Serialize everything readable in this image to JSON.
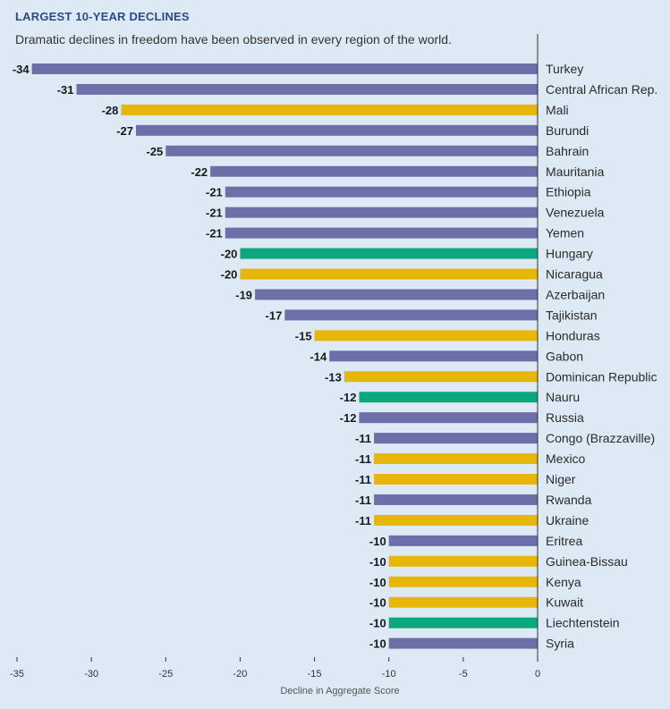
{
  "header": {
    "title": "LARGEST 10-YEAR DECLINES",
    "subtitle": "Dramatic declines in freedom have been observed in every region of the world."
  },
  "colors": {
    "background": "#dde9f5",
    "purple": "#6d70a8",
    "yellow": "#e7b60b",
    "green": "#0ca77e",
    "axis": "#333333"
  },
  "chart_data": {
    "type": "bar",
    "orientation": "horizontal",
    "title": "LARGEST 10-YEAR DECLINES",
    "subtitle": "Dramatic declines in freedom have been observed in every region of the world.",
    "xlabel": "Decline in Aggregate Score",
    "xlim": [
      -35,
      0
    ],
    "xticks": [
      -35,
      -30,
      -25,
      -20,
      -15,
      -10,
      -5,
      0
    ],
    "grid": false,
    "categories": [
      "Turkey",
      "Central African Rep.",
      "Mali",
      "Burundi",
      "Bahrain",
      "Mauritania",
      "Ethiopia",
      "Venezuela",
      "Yemen",
      "Hungary",
      "Nicaragua",
      "Azerbaijan",
      "Tajikistan",
      "Honduras",
      "Gabon",
      "Dominican Republic",
      "Nauru",
      "Russia",
      "Congo (Brazzaville)",
      "Mexico",
      "Niger",
      "Rwanda",
      "Ukraine",
      "Eritrea",
      "Guinea-Bissau",
      "Kenya",
      "Kuwait",
      "Liechtenstein",
      "Syria"
    ],
    "values": [
      -34,
      -31,
      -28,
      -27,
      -25,
      -22,
      -21,
      -21,
      -21,
      -20,
      -20,
      -19,
      -17,
      -15,
      -14,
      -13,
      -12,
      -12,
      -11,
      -11,
      -11,
      -11,
      -11,
      -10,
      -10,
      -10,
      -10,
      -10,
      -10
    ],
    "value_labels": [
      "-34",
      "-31",
      "-28",
      "-27",
      "-25",
      "-22",
      "-21",
      "-21",
      "-21",
      "-20",
      "-20",
      "-19",
      "-17",
      "-15",
      "-14",
      "-13",
      "-12",
      "-12",
      "-11",
      "-11",
      "-11",
      "-11",
      "-11",
      "-10",
      "-10",
      "-10",
      "-10",
      "-10",
      "-10"
    ],
    "bar_colors": [
      "purple",
      "purple",
      "yellow",
      "purple",
      "purple",
      "purple",
      "purple",
      "purple",
      "purple",
      "green",
      "yellow",
      "purple",
      "purple",
      "yellow",
      "purple",
      "yellow",
      "green",
      "purple",
      "purple",
      "yellow",
      "yellow",
      "purple",
      "yellow",
      "purple",
      "yellow",
      "yellow",
      "yellow",
      "green",
      "purple"
    ]
  }
}
